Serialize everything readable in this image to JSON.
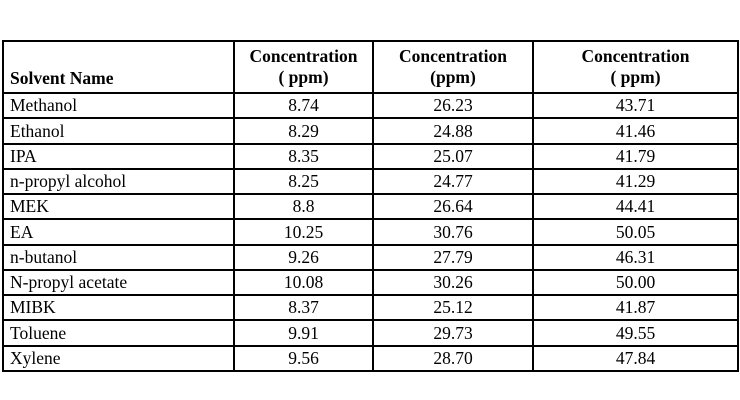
{
  "page": {
    "background_color": "#ffffff",
    "border_color": "#000000",
    "text_color": "#000000"
  },
  "table": {
    "header": {
      "col1": "Solvent Name",
      "col2_line1": "Concentration",
      "col2_line2": "( ppm)",
      "col3_line1": "Concentration",
      "col3_line2": "(ppm)",
      "col4_line1": "Concentration",
      "col4_line2": "( ppm)"
    },
    "rows": [
      {
        "name": "Methanol",
        "c1": "8.74",
        "c2": "26.23",
        "c3": "43.71"
      },
      {
        "name": "Ethanol",
        "c1": "8.29",
        "c2": "24.88",
        "c3": "41.46"
      },
      {
        "name": "IPA",
        "c1": "8.35",
        "c2": "25.07",
        "c3": "41.79"
      },
      {
        "name": "n-propyl alcohol",
        "c1": "8.25",
        "c2": "24.77",
        "c3": "41.29"
      },
      {
        "name": "MEK",
        "c1": "8.8",
        "c2": "26.64",
        "c3": "44.41"
      },
      {
        "name": "EA",
        "c1": "10.25",
        "c2": "30.76",
        "c3": "50.05"
      },
      {
        "name": "n-butanol",
        "c1": "9.26",
        "c2": "27.79",
        "c3": "46.31"
      },
      {
        "name": "N-propyl acetate",
        "c1": "10.08",
        "c2": "30.26",
        "c3": "50.00"
      },
      {
        "name": "MIBK",
        "c1": "8.37",
        "c2": "25.12",
        "c3": "41.87"
      },
      {
        "name": "Toluene",
        "c1": "9.91",
        "c2": "29.73",
        "c3": "49.55"
      },
      {
        "name": "Xylene",
        "c1": "9.56",
        "c2": "28.70",
        "c3": "47.84"
      }
    ]
  }
}
